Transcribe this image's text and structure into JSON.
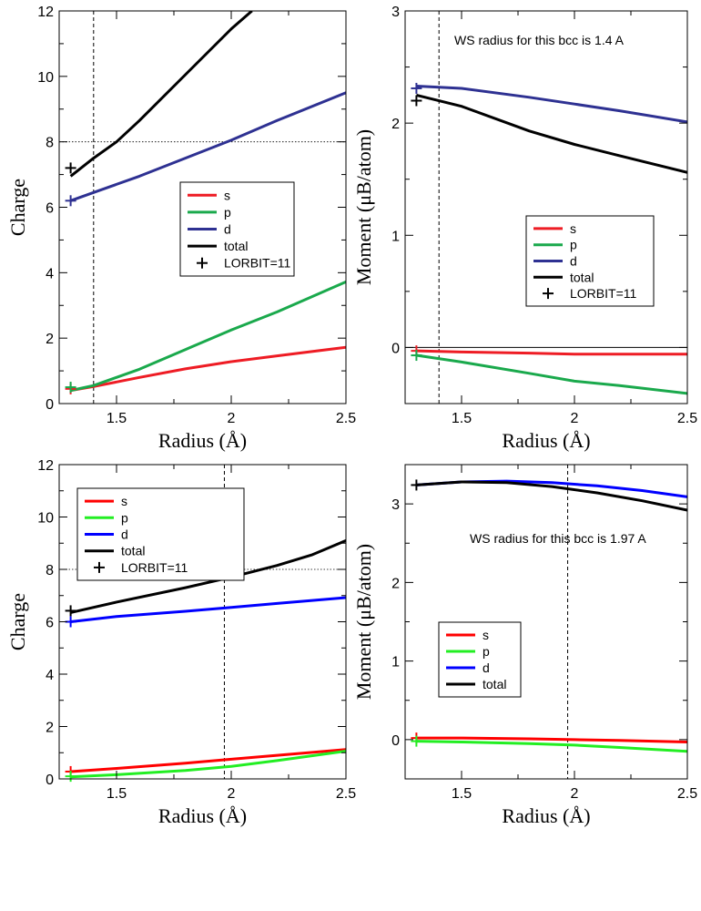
{
  "colors": {
    "panel1": {
      "s": "#ee1c24",
      "p": "#1aa94c",
      "d": "#2e3192",
      "total": "#000000",
      "marker": "#000000"
    },
    "panel3": {
      "s": "#ff0000",
      "p": "#22ee22",
      "d": "#0000ff",
      "total": "#000000",
      "marker": "#000000"
    }
  },
  "chart_data": [
    {
      "type": "line",
      "panel": "top-left",
      "xlabel": "Radius (Å)",
      "ylabel": "Charge",
      "xlim": [
        1.25,
        2.5
      ],
      "ylim": [
        0,
        12
      ],
      "xticks": [
        1.5,
        2,
        2.5
      ],
      "xticklabels": [
        "1.5",
        "2",
        "2.5"
      ],
      "yticks": [
        0,
        2,
        4,
        6,
        8,
        10,
        12
      ],
      "yticklabels": [
        "0",
        "2",
        "4",
        "6",
        "8",
        "10",
        "12"
      ],
      "minor_x": [
        1.25,
        1.75,
        2.25
      ],
      "minor_y": [
        1,
        3,
        5,
        7,
        9,
        11
      ],
      "hline_dotted": 8,
      "vline_dashed": 1.4,
      "legend": {
        "position": "center-right",
        "entries": [
          {
            "label": "s",
            "kind": "line",
            "color_key": "s"
          },
          {
            "label": "p",
            "kind": "line",
            "color_key": "p"
          },
          {
            "label": "d",
            "kind": "line",
            "color_key": "d"
          },
          {
            "label": "total",
            "kind": "line",
            "color_key": "total"
          },
          {
            "label": "LORBIT=11",
            "kind": "marker",
            "color_key": "marker"
          }
        ]
      },
      "series": [
        {
          "name": "s",
          "color_key": "s",
          "x": [
            1.3,
            1.4,
            1.6,
            1.8,
            2.0,
            2.2,
            2.5
          ],
          "values": [
            0.4,
            0.52,
            0.8,
            1.06,
            1.28,
            1.46,
            1.72
          ]
        },
        {
          "name": "p",
          "color_key": "p",
          "x": [
            1.3,
            1.4,
            1.6,
            1.8,
            2.0,
            2.2,
            2.5
          ],
          "values": [
            0.4,
            0.55,
            1.05,
            1.65,
            2.25,
            2.8,
            3.72
          ]
        },
        {
          "name": "d",
          "color_key": "d",
          "x": [
            1.3,
            1.4,
            1.6,
            1.8,
            2.0,
            2.2,
            2.5
          ],
          "values": [
            6.2,
            6.45,
            6.95,
            7.5,
            8.05,
            8.65,
            9.5
          ]
        },
        {
          "name": "total",
          "color_key": "total",
          "x": [
            1.3,
            1.4,
            1.5,
            1.6,
            1.8,
            2.0,
            2.09
          ],
          "values": [
            6.95,
            7.5,
            8.0,
            8.65,
            10.05,
            11.45,
            12.0
          ]
        }
      ],
      "markers": [
        {
          "color_key": "s",
          "x": 1.3,
          "y": 0.45
        },
        {
          "color_key": "p",
          "x": 1.3,
          "y": 0.5
        },
        {
          "color_key": "d",
          "x": 1.3,
          "y": 6.2
        },
        {
          "color_key": "marker",
          "x": 1.3,
          "y": 7.2
        }
      ]
    },
    {
      "type": "line",
      "panel": "top-right",
      "xlabel": "Radius (Å)",
      "ylabel": "Moment (μB/atom)",
      "xlim": [
        1.25,
        2.5
      ],
      "ylim": [
        -0.5,
        3
      ],
      "xticks": [
        1.5,
        2,
        2.5
      ],
      "xticklabels": [
        "1.5",
        "2",
        "2.5"
      ],
      "yticks": [
        0,
        1,
        2,
        3
      ],
      "yticklabels": [
        "0",
        "1",
        "2",
        "3"
      ],
      "minor_x": [
        1.25,
        1.75,
        2.25
      ],
      "minor_y": [
        0.5,
        1.5,
        2.5
      ],
      "hline_solid": 0,
      "vline_dashed": 1.4,
      "annotation": "WS radius for this bcc is 1.4 A",
      "legend": {
        "position": "center-right",
        "entries": [
          {
            "label": "s",
            "kind": "line",
            "color_key": "s"
          },
          {
            "label": "p",
            "kind": "line",
            "color_key": "p"
          },
          {
            "label": "d",
            "kind": "line",
            "color_key": "d"
          },
          {
            "label": "total",
            "kind": "line",
            "color_key": "total"
          },
          {
            "label": "LORBIT=11",
            "kind": "marker",
            "color_key": "marker"
          }
        ]
      },
      "series": [
        {
          "name": "s",
          "color_key": "s",
          "x": [
            1.3,
            1.5,
            1.8,
            2.0,
            2.5
          ],
          "values": [
            -0.03,
            -0.04,
            -0.05,
            -0.06,
            -0.06
          ]
        },
        {
          "name": "p",
          "color_key": "p",
          "x": [
            1.3,
            1.5,
            1.8,
            2.0,
            2.2,
            2.5
          ],
          "values": [
            -0.07,
            -0.13,
            -0.23,
            -0.3,
            -0.34,
            -0.41
          ]
        },
        {
          "name": "d",
          "color_key": "d",
          "x": [
            1.3,
            1.5,
            1.8,
            2.0,
            2.2,
            2.5
          ],
          "values": [
            2.33,
            2.31,
            2.23,
            2.17,
            2.11,
            2.01
          ]
        },
        {
          "name": "total",
          "color_key": "total",
          "x": [
            1.3,
            1.5,
            1.8,
            2.0,
            2.2,
            2.5
          ],
          "values": [
            2.25,
            2.15,
            1.93,
            1.81,
            1.71,
            1.56
          ]
        }
      ],
      "markers": [
        {
          "color_key": "s",
          "x": 1.3,
          "y": -0.03
        },
        {
          "color_key": "p",
          "x": 1.3,
          "y": -0.07
        },
        {
          "color_key": "d",
          "x": 1.3,
          "y": 2.31
        },
        {
          "color_key": "marker",
          "x": 1.3,
          "y": 2.2
        }
      ]
    },
    {
      "type": "line",
      "panel": "bottom-left",
      "xlabel": "Radius (Å)",
      "ylabel": "Charge",
      "xlim": [
        1.25,
        2.5
      ],
      "ylim": [
        0,
        12
      ],
      "xticks": [
        1.5,
        2,
        2.5
      ],
      "xticklabels": [
        "1.5",
        "2",
        "2.5"
      ],
      "yticks": [
        0,
        2,
        4,
        6,
        8,
        10,
        12
      ],
      "yticklabels": [
        "0",
        "2",
        "4",
        "6",
        "8",
        "10",
        "12"
      ],
      "minor_x": [
        1.25,
        1.75,
        2.25
      ],
      "minor_y": [
        1,
        3,
        5,
        7,
        9,
        11
      ],
      "hline_dotted": 8,
      "vline_dashed": 1.97,
      "legend": {
        "position": "top-left",
        "entries": [
          {
            "label": "s",
            "kind": "line",
            "color_key": "s"
          },
          {
            "label": "p",
            "kind": "line",
            "color_key": "p"
          },
          {
            "label": "d",
            "kind": "line",
            "color_key": "d"
          },
          {
            "label": "total",
            "kind": "line",
            "color_key": "total"
          },
          {
            "label": "LORBIT=11",
            "kind": "marker",
            "color_key": "marker"
          }
        ]
      },
      "series": [
        {
          "name": "s",
          "color_key": "s",
          "x": [
            1.3,
            1.5,
            1.8,
            2.0,
            2.2,
            2.5
          ],
          "values": [
            0.28,
            0.4,
            0.6,
            0.75,
            0.9,
            1.12
          ]
        },
        {
          "name": "p",
          "color_key": "p",
          "x": [
            1.3,
            1.5,
            1.8,
            2.0,
            2.2,
            2.5
          ],
          "values": [
            0.08,
            0.16,
            0.32,
            0.48,
            0.7,
            1.06
          ]
        },
        {
          "name": "d",
          "color_key": "d",
          "x": [
            1.3,
            1.5,
            1.8,
            2.0,
            2.2,
            2.5
          ],
          "values": [
            6.0,
            6.2,
            6.4,
            6.55,
            6.7,
            6.92
          ]
        },
        {
          "name": "total",
          "color_key": "total",
          "x": [
            1.3,
            1.5,
            1.8,
            2.0,
            2.2,
            2.35,
            2.5
          ],
          "values": [
            6.35,
            6.75,
            7.3,
            7.7,
            8.15,
            8.55,
            9.1
          ]
        }
      ],
      "markers": [
        {
          "color_key": "s",
          "x": 1.3,
          "y": 0.28
        },
        {
          "color_key": "p",
          "x": 1.3,
          "y": 0.1
        },
        {
          "color_key": "d",
          "x": 1.3,
          "y": 6.0
        },
        {
          "color_key": "marker",
          "x": 1.3,
          "y": 6.42
        }
      ]
    },
    {
      "type": "line",
      "panel": "bottom-right",
      "xlabel": "Radius (Å)",
      "ylabel": "Moment (μB/atom)",
      "xlim": [
        1.25,
        2.5
      ],
      "ylim": [
        -0.5,
        3.5
      ],
      "xticks": [
        1.5,
        2,
        2.5
      ],
      "xticklabels": [
        "1.5",
        "2",
        "2.5"
      ],
      "yticks": [
        0,
        1,
        2,
        3
      ],
      "yticklabels": [
        "0",
        "1",
        "2",
        "3"
      ],
      "minor_x": [
        1.25,
        1.75,
        2.25
      ],
      "minor_y": [
        0.5,
        1.5,
        2.5
      ],
      "vline_dashed": 1.97,
      "annotation": "WS radius for this bcc is 1.97 A",
      "legend": {
        "position": "lower-left",
        "entries": [
          {
            "label": "s",
            "kind": "line",
            "color_key": "s"
          },
          {
            "label": "p",
            "kind": "line",
            "color_key": "p"
          },
          {
            "label": "d",
            "kind": "line",
            "color_key": "d"
          },
          {
            "label": "total",
            "kind": "line",
            "color_key": "total"
          }
        ]
      },
      "series": [
        {
          "name": "s",
          "color_key": "s",
          "x": [
            1.3,
            1.5,
            1.8,
            2.0,
            2.2,
            2.5
          ],
          "values": [
            0.02,
            0.02,
            0.01,
            0.0,
            -0.01,
            -0.03
          ]
        },
        {
          "name": "p",
          "color_key": "p",
          "x": [
            1.3,
            1.5,
            1.8,
            2.0,
            2.2,
            2.5
          ],
          "values": [
            -0.02,
            -0.03,
            -0.05,
            -0.07,
            -0.1,
            -0.15
          ]
        },
        {
          "name": "d",
          "color_key": "d",
          "x": [
            1.3,
            1.5,
            1.7,
            1.9,
            2.1,
            2.3,
            2.5
          ],
          "values": [
            3.24,
            3.28,
            3.29,
            3.27,
            3.23,
            3.17,
            3.09
          ]
        },
        {
          "name": "total",
          "color_key": "total",
          "x": [
            1.3,
            1.5,
            1.7,
            1.9,
            2.1,
            2.3,
            2.5
          ],
          "values": [
            3.24,
            3.28,
            3.27,
            3.22,
            3.14,
            3.04,
            2.92
          ]
        }
      ],
      "markers": [
        {
          "color_key": "s",
          "x": 1.3,
          "y": 0.02
        },
        {
          "color_key": "p",
          "x": 1.3,
          "y": -0.02
        },
        {
          "color_key": "marker",
          "x": 1.3,
          "y": 3.24
        }
      ]
    }
  ]
}
